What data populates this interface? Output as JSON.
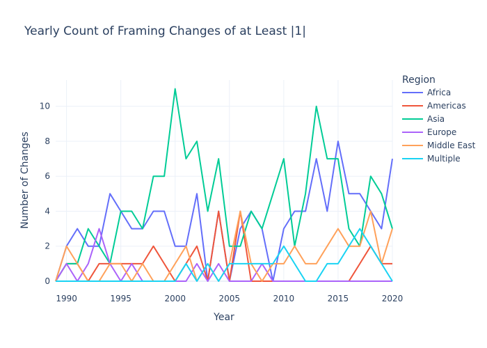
{
  "chart_data": {
    "type": "line",
    "title": "Yearly Count of Framing Changes of at Least |1|",
    "xlabel": "Year",
    "ylabel": "Number of Changes",
    "xlim": [
      1989,
      2020
    ],
    "ylim": [
      0,
      11.5
    ],
    "x_ticks": [
      1990,
      1995,
      2000,
      2005,
      2010,
      2015,
      2020
    ],
    "y_ticks": [
      0,
      2,
      4,
      6,
      8,
      10
    ],
    "grid": true,
    "legend_title": "Region",
    "legend_position": "right",
    "x": [
      1989,
      1990,
      1991,
      1992,
      1993,
      1994,
      1995,
      1996,
      1997,
      1998,
      1999,
      2000,
      2001,
      2002,
      2003,
      2004,
      2005,
      2006,
      2007,
      2008,
      2009,
      2010,
      2011,
      2012,
      2013,
      2014,
      2015,
      2016,
      2017,
      2018,
      2019,
      2020
    ],
    "series": [
      {
        "name": "Africa",
        "color": "#636efa",
        "values": [
          0,
          2,
          3,
          2,
          2,
          5,
          4,
          3,
          3,
          4,
          4,
          2,
          2,
          5,
          0,
          4,
          0,
          3,
          4,
          3,
          0,
          3,
          4,
          4,
          7,
          4,
          8,
          5,
          5,
          4,
          3,
          7
        ]
      },
      {
        "name": "Americas",
        "color": "#ef553b",
        "values": [
          0,
          1,
          1,
          0,
          1,
          1,
          1,
          1,
          1,
          2,
          1,
          0,
          1,
          2,
          0,
          4,
          0,
          4,
          0,
          0,
          0,
          0,
          0,
          0,
          0,
          0,
          0,
          0,
          1,
          2,
          1,
          1
        ]
      },
      {
        "name": "Asia",
        "color": "#00cc96",
        "values": [
          0,
          1,
          1,
          3,
          2,
          1,
          4,
          4,
          3,
          6,
          6,
          11,
          7,
          8,
          4,
          7,
          2,
          2,
          4,
          3,
          5,
          7,
          2,
          5,
          10,
          7,
          7,
          3,
          2,
          6,
          5,
          3
        ]
      },
      {
        "name": "Europe",
        "color": "#ab63fa",
        "values": [
          0,
          1,
          0,
          1,
          3,
          1,
          0,
          1,
          0,
          0,
          0,
          0,
          0,
          1,
          0,
          1,
          0,
          0,
          0,
          1,
          0,
          0,
          0,
          0,
          0,
          0,
          0,
          0,
          0,
          0,
          0,
          0
        ]
      },
      {
        "name": "Middle East",
        "color": "#ffa15a",
        "values": [
          0,
          2,
          1,
          0,
          0,
          1,
          1,
          0,
          1,
          0,
          0,
          1,
          2,
          0,
          1,
          0,
          1,
          4,
          1,
          0,
          1,
          1,
          2,
          1,
          1,
          2,
          3,
          2,
          2,
          4,
          1,
          3
        ]
      },
      {
        "name": "Multiple",
        "color": "#19d3f3",
        "values": [
          0,
          0,
          0,
          0,
          0,
          0,
          0,
          0,
          0,
          0,
          0,
          0,
          1,
          0,
          1,
          0,
          1,
          1,
          1,
          1,
          1,
          2,
          1,
          0,
          0,
          1,
          1,
          2,
          3,
          2,
          1,
          0
        ]
      }
    ]
  }
}
